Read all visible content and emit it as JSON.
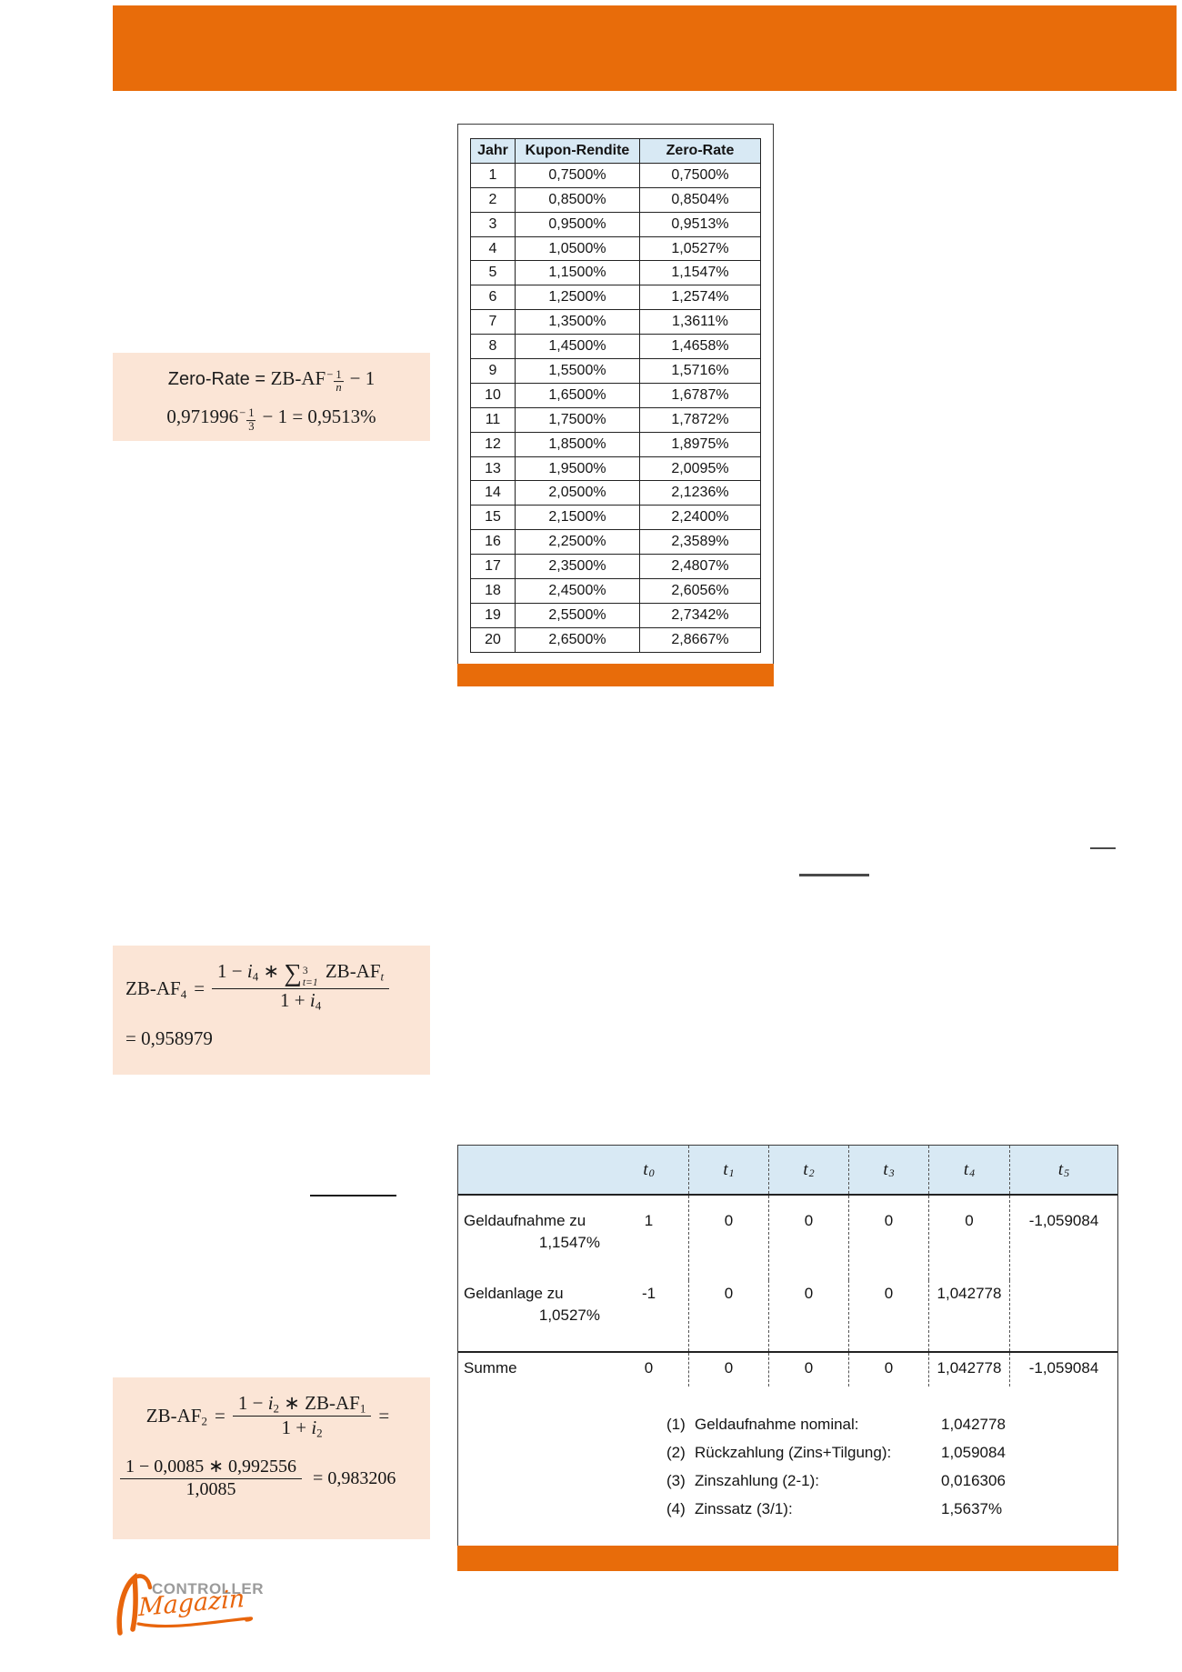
{
  "colors": {
    "accent_orange": "#e86c0a",
    "table_header_blue": "#d8e9f4",
    "formula_bg": "#fbe5d6"
  },
  "logo": {
    "title": "CONTROLLER",
    "subtitle": "Magazin"
  },
  "zero_rate_table": {
    "headers": [
      "Jahr",
      "Kupon-Rendite",
      "Zero-Rate"
    ],
    "rows": [
      [
        "1",
        "0,7500%",
        "0,7500%"
      ],
      [
        "2",
        "0,8500%",
        "0,8504%"
      ],
      [
        "3",
        "0,9500%",
        "0,9513%"
      ],
      [
        "4",
        "1,0500%",
        "1,0527%"
      ],
      [
        "5",
        "1,1500%",
        "1,1547%"
      ],
      [
        "6",
        "1,2500%",
        "1,2574%"
      ],
      [
        "7",
        "1,3500%",
        "1,3611%"
      ],
      [
        "8",
        "1,4500%",
        "1,4658%"
      ],
      [
        "9",
        "1,5500%",
        "1,5716%"
      ],
      [
        "10",
        "1,6500%",
        "1,6787%"
      ],
      [
        "11",
        "1,7500%",
        "1,7872%"
      ],
      [
        "12",
        "1,8500%",
        "1,8975%"
      ],
      [
        "13",
        "1,9500%",
        "2,0095%"
      ],
      [
        "14",
        "2,0500%",
        "2,1236%"
      ],
      [
        "15",
        "2,1500%",
        "2,2400%"
      ],
      [
        "16",
        "2,2500%",
        "2,3589%"
      ],
      [
        "17",
        "2,3500%",
        "2,4807%"
      ],
      [
        "18",
        "2,4500%",
        "2,6056%"
      ],
      [
        "19",
        "2,5500%",
        "2,7342%"
      ],
      [
        "20",
        "2,6500%",
        "2,8667%"
      ]
    ]
  },
  "formula_zero_rate": {
    "line1_prefix": "Zero-Rate = ",
    "line1_base": "ZB-AF",
    "line1_exp_sign": "−",
    "line1_exp_num": "1",
    "line1_exp_den": "n",
    "line1_tail": "− 1",
    "line2_base": "0,971996",
    "line2_exp_sign": "−",
    "line2_exp_num": "1",
    "line2_exp_den": "3",
    "line2_tail": "− 1 = 0,9513%"
  },
  "formula_zb_af4": {
    "lhs": "ZB-AF",
    "lhs_sub": "4",
    "eq": "=",
    "num_a": "1 − ",
    "num_i": "i",
    "num_i_sub": "4",
    "num_mul": " ∗ ",
    "sum_op": "∑",
    "sum_sup": "3",
    "sum_sub": "t=1",
    "num_b": " ZB-AF",
    "num_b_sub": "t",
    "den_a": "1 + ",
    "den_i": "i",
    "den_i_sub": "4",
    "result": "= 0,958979"
  },
  "formula_zb_af2": {
    "lhs": "ZB-AF",
    "lhs_sub": "2",
    "eq": "=",
    "num_a": "1 − ",
    "num_i": "i",
    "num_i_sub": "2",
    "num_b": " ∗ ZB-AF",
    "num_b_sub": "1",
    "den_a": "1 + ",
    "den_i": "i",
    "den_i_sub": "2",
    "tail_eq": "=",
    "line2_num": "1 − 0,0085 ∗ 0,992556",
    "line2_den": "1,0085",
    "line2_result": "= 0,983206"
  },
  "cashflow_table": {
    "col_headers": [
      {
        "base": "t",
        "sub": "0"
      },
      {
        "base": "t",
        "sub": "1"
      },
      {
        "base": "t",
        "sub": "2"
      },
      {
        "base": "t",
        "sub": "3"
      },
      {
        "base": "t",
        "sub": "4"
      },
      {
        "base": "t",
        "sub": "5"
      }
    ],
    "rows": [
      {
        "label": "Geldaufnahme zu",
        "rate": "1,1547%",
        "values": [
          "1",
          "0",
          "0",
          "0",
          "0",
          "-1,059084"
        ]
      },
      {
        "label": "Geldanlage zu",
        "rate": "1,0527%",
        "values": [
          "-1",
          "0",
          "0",
          "0",
          "1,042778",
          ""
        ]
      }
    ],
    "summe": {
      "label": "Summe",
      "values": [
        "0",
        "0",
        "0",
        "0",
        "1,042778",
        "-1,059084"
      ]
    },
    "notes": [
      {
        "no": "(1)",
        "label": "Geldaufnahme nominal:",
        "value": "1,042778"
      },
      {
        "no": "(2)",
        "label": "Rückzahlung (Zins+Tilgung):",
        "value": "1,059084"
      },
      {
        "no": "(3)",
        "label": "Zinszahlung (2-1):",
        "value": "0,016306"
      },
      {
        "no": "(4)",
        "label": "Zinssatz (3/1):",
        "value": "1,5637%"
      }
    ]
  }
}
